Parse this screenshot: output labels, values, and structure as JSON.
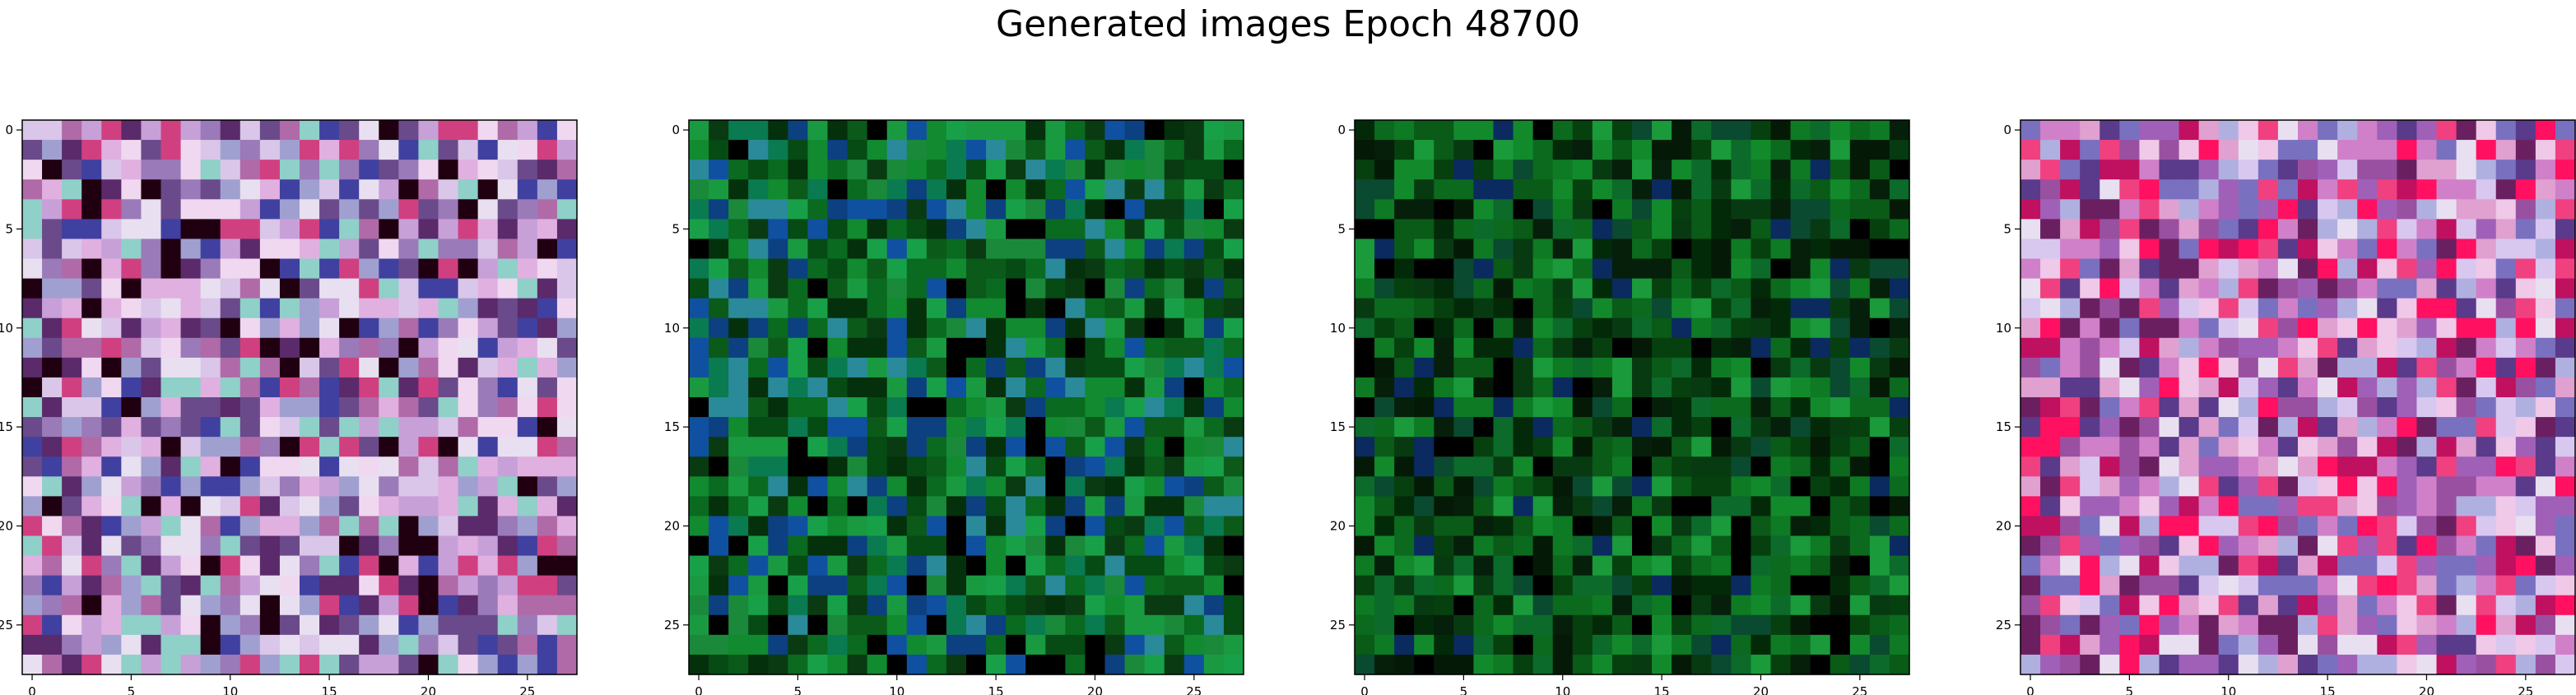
{
  "title": "Generated images Epoch 48700",
  "chart_data": [
    {
      "type": "heatmap",
      "title": "",
      "xlabel": "",
      "ylabel": "",
      "grid": 28,
      "xlim": [
        0,
        27
      ],
      "ylim": [
        27,
        0
      ],
      "x_ticks": [
        "0",
        "5",
        "10",
        "15",
        "20",
        "25"
      ],
      "y_ticks": [
        "0",
        "5",
        "10",
        "15",
        "20",
        "25"
      ],
      "palette": [
        "#f0d8f0",
        "#c8a0d8",
        "#9a7ab8",
        "#d9c6e8",
        "#b06aa8",
        "#6a4a8a",
        "#e8e0f0",
        "#8fd0c8",
        "#4040a0",
        "#200010",
        "#d04080",
        "#5a2a6a",
        "#a0a0d0",
        "#e0b0e0"
      ],
      "seed": 11
    },
    {
      "type": "heatmap",
      "title": "",
      "xlabel": "",
      "ylabel": "",
      "grid": 28,
      "xlim": [
        0,
        27
      ],
      "ylim": [
        27,
        0
      ],
      "x_ticks": [
        "0",
        "5",
        "10",
        "15",
        "20",
        "25"
      ],
      "y_ticks": [
        "0",
        "5",
        "10",
        "15",
        "20",
        "25"
      ],
      "palette": [
        "#0a6a20",
        "#118a30",
        "#0b5a1a",
        "#1a9a40",
        "#064a14",
        "#0a3a12",
        "#1050a0",
        "#0a7a50",
        "#2a8a9a",
        "#04300c",
        "#18a048",
        "#0c4080",
        "#000000",
        "#1a8a3a"
      ],
      "seed": 23
    },
    {
      "type": "heatmap",
      "title": "",
      "xlabel": "",
      "ylabel": "",
      "grid": 28,
      "xlim": [
        0,
        27
      ],
      "ylim": [
        27,
        0
      ],
      "x_ticks": [
        "0",
        "5",
        "10",
        "15",
        "20",
        "25"
      ],
      "y_ticks": [
        "0",
        "5",
        "10",
        "15",
        "20",
        "25"
      ],
      "palette": [
        "#0a5a18",
        "#06400f",
        "#0e7a24",
        "#032a08",
        "#128a2c",
        "#041a06",
        "#0a4a30",
        "#0a2a60",
        "#0b6a1e",
        "#000000",
        "#1a9a3a",
        "#083a12",
        "#0c6a2a",
        "#051f0a"
      ],
      "seed": 37
    },
    {
      "type": "heatmap",
      "title": "",
      "xlabel": "",
      "ylabel": "",
      "grid": 28,
      "xlim": [
        0,
        27
      ],
      "ylim": [
        27,
        0
      ],
      "x_ticks": [
        "0",
        "5",
        "10",
        "15",
        "20",
        "25"
      ],
      "y_ticks": [
        "0",
        "5",
        "10",
        "15",
        "20",
        "25"
      ],
      "palette": [
        "#f0c8e8",
        "#d080c8",
        "#a060b8",
        "#7a70c0",
        "#e8e0f0",
        "#f04080",
        "#c01060",
        "#9a50a0",
        "#e0a0d0",
        "#5a3a8a",
        "#ff1060",
        "#b0b0e0",
        "#6a2060",
        "#d8c8f0"
      ],
      "seed": 53
    }
  ]
}
